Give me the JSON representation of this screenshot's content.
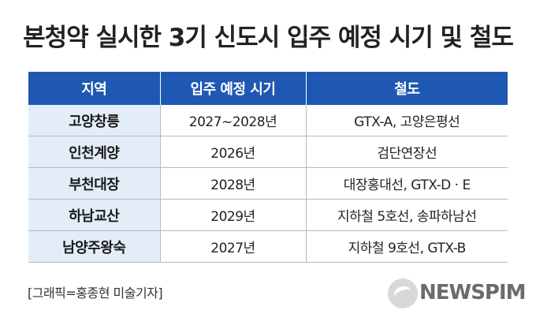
{
  "title": "본청약 실시한 3기 신도시 입주 예정 시기 및 철도",
  "table": {
    "headers": [
      "지역",
      "입주 예정 시기",
      "철도"
    ],
    "rows": [
      {
        "region": "고양창릉",
        "date": "2027~2028년",
        "rail": "GTX-A, 고양은평선"
      },
      {
        "region": "인천계양",
        "date": "2026년",
        "rail": "검단연장선"
      },
      {
        "region": "부천대장",
        "date": "2028년",
        "rail": "대장홍대선, GTX-D · E"
      },
      {
        "region": "하남교산",
        "date": "2029년",
        "rail": "지하철 5호선, 송파하남선"
      },
      {
        "region": "남양주왕숙",
        "date": "2027년",
        "rail": "지하철 9호선, GTX-B"
      }
    ]
  },
  "credit": "[그래픽=홍종현 미술기자]",
  "logo": {
    "text": "NEWSPIM",
    "icon": "newspim-logo-icon"
  },
  "colors": {
    "header_bg": "#1f58b3",
    "region_bg": "#e3edf8",
    "border": "#b9b9b9"
  }
}
